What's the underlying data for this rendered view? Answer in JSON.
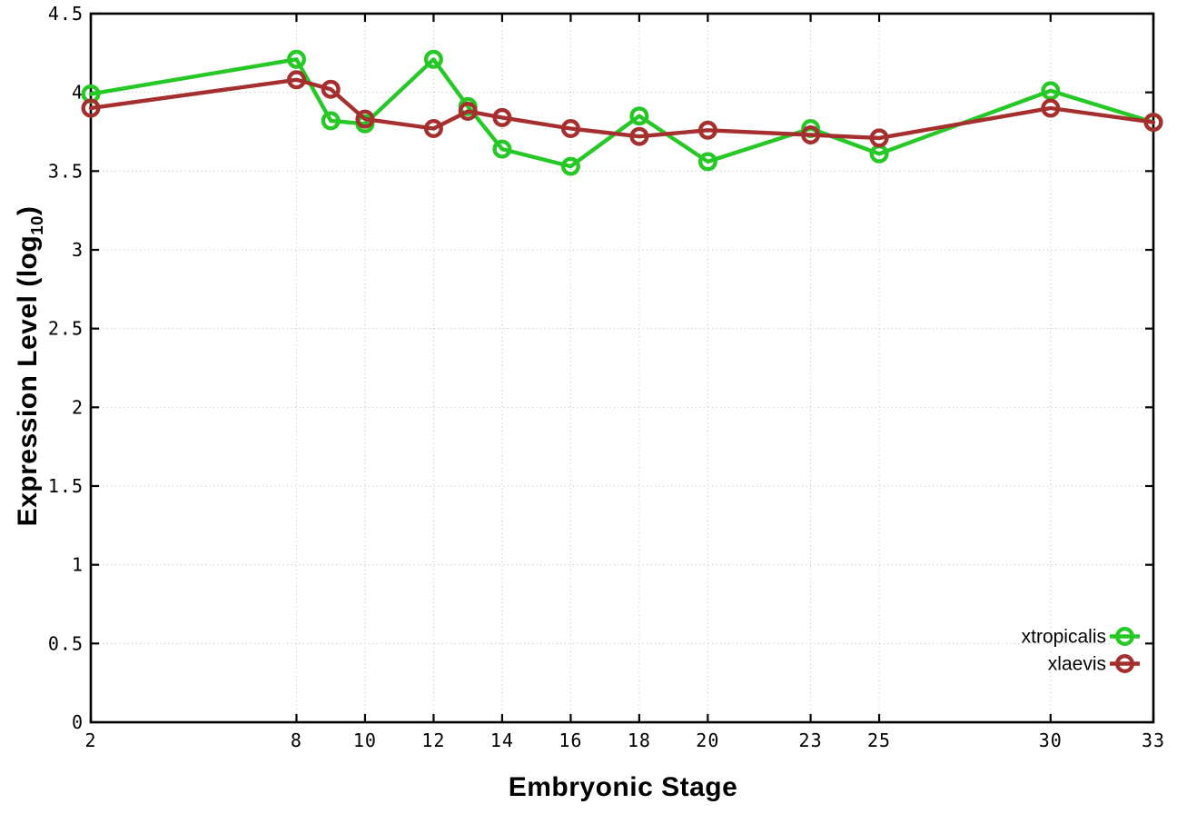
{
  "figure": {
    "xlabel": "Embryonic Stage",
    "ylabel_prefix": "Expression Level (log",
    "ylabel_sub": "10",
    "ylabel_suffix": ")"
  },
  "chart_data": {
    "type": "line",
    "title": "",
    "xlabel": "Embryonic Stage",
    "ylabel": "Expression Level (log10)",
    "x": [
      2,
      8,
      9,
      10,
      12,
      13,
      14,
      16,
      18,
      20,
      23,
      25,
      30,
      33
    ],
    "series": [
      {
        "name": "xtropicalis",
        "color": "#26c826",
        "marker": "open-circle",
        "values": [
          3.99,
          4.21,
          3.82,
          3.8,
          4.21,
          3.91,
          3.64,
          3.53,
          3.85,
          3.56,
          3.77,
          3.61,
          4.01,
          3.81
        ]
      },
      {
        "name": "xlaevis",
        "color": "#a52e2e",
        "marker": "open-circle",
        "values": [
          3.9,
          4.08,
          4.02,
          3.83,
          3.77,
          3.88,
          3.84,
          3.77,
          3.72,
          3.76,
          3.73,
          3.71,
          3.9,
          3.81
        ]
      }
    ],
    "xlim": [
      2,
      33
    ],
    "ylim": [
      0,
      4.5
    ],
    "xticks": [
      2,
      8,
      10,
      12,
      14,
      16,
      18,
      20,
      23,
      25,
      30,
      33
    ],
    "xtick_labels": [
      "2",
      "8",
      "10",
      "12",
      "14",
      "16",
      "18",
      "20",
      "23",
      "25",
      "30",
      "33"
    ],
    "yticks": [
      0,
      0.5,
      1,
      1.5,
      2,
      2.5,
      3,
      3.5,
      4,
      4.5
    ],
    "ytick_labels": [
      "0",
      "0.5",
      "1",
      "1.5",
      "2",
      "2.5",
      "3",
      "3.5",
      "4",
      "4.5"
    ],
    "grid": true,
    "legend_position": "inside-bottom-right",
    "axis_color": "#000000",
    "grid_color": "#bdbdbd",
    "background_color": "#ffffff"
  }
}
